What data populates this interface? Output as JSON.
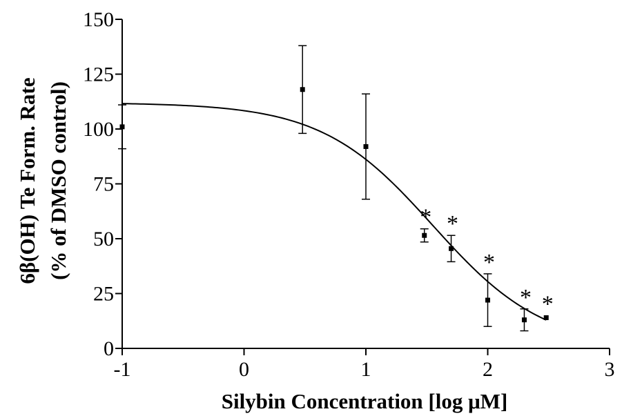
{
  "chart_data": {
    "type": "scatter",
    "xlabel": "Silybin Concentration [log  μM]",
    "ylabel_line1": "6β(OH) Te Form. Rate",
    "ylabel_line2": "(% of DMSO control)",
    "xlim": [
      -1,
      3
    ],
    "ylim": [
      0,
      150
    ],
    "x_ticks": [
      -1,
      0,
      1,
      2,
      3
    ],
    "y_ticks": [
      0,
      25,
      50,
      75,
      100,
      125,
      150
    ],
    "grid": false,
    "points": [
      {
        "x": -1.0,
        "y": 101,
        "err": 10,
        "sig": false
      },
      {
        "x": 0.48,
        "y": 118,
        "err": 20,
        "sig": false
      },
      {
        "x": 1.0,
        "y": 92,
        "err": 24,
        "sig": false
      },
      {
        "x": 1.48,
        "y": 51.5,
        "err": 3,
        "sig": true
      },
      {
        "x": 1.7,
        "y": 45.5,
        "err": 6,
        "sig": true
      },
      {
        "x": 2.0,
        "y": 22,
        "err": 12,
        "sig": true
      },
      {
        "x": 2.3,
        "y": 13,
        "err": 5,
        "sig": true
      },
      {
        "x": 2.48,
        "y": 14,
        "err": 0.5,
        "sig": true
      }
    ],
    "significance_marker": "*",
    "fit_curve": {
      "model": "sigmoidal dose-response",
      "top": 112,
      "bottom": 0,
      "logIC50": 1.55,
      "hill_slope": 0.95,
      "x_range": [
        -1,
        2.48
      ]
    }
  }
}
